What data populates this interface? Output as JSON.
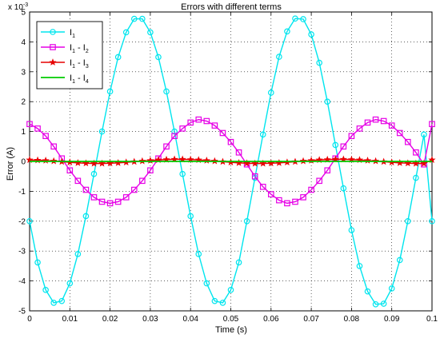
{
  "chart_data": {
    "type": "line",
    "title": "Errors with different terms",
    "xlabel": "Time (s)",
    "ylabel": "Error (A)",
    "y_multiplier_label": "x 10",
    "y_multiplier_exp": "-3",
    "xlim": [
      0,
      0.1
    ],
    "ylim": [
      -5,
      5
    ],
    "xticks": [
      "0",
      "0.01",
      "0.02",
      "0.03",
      "0.04",
      "0.05",
      "0.06",
      "0.07",
      "0.08",
      "0.09",
      "0.1"
    ],
    "yticks": [
      "5",
      "4",
      "3",
      "2",
      "1",
      "0",
      "-1",
      "-2",
      "-3",
      "-4",
      "-5"
    ],
    "grid": true,
    "legend_position": "top-left",
    "x": [
      0,
      0.002,
      0.004,
      0.006,
      0.008,
      0.01,
      0.012,
      0.014,
      0.016,
      0.018,
      0.02,
      0.022,
      0.024,
      0.026,
      0.028,
      0.03,
      0.032,
      0.034,
      0.036,
      0.038,
      0.04,
      0.042,
      0.044,
      0.046,
      0.048,
      0.05,
      0.052,
      0.054,
      0.056,
      0.058,
      0.06,
      0.062,
      0.064,
      0.066,
      0.068,
      0.07,
      0.072,
      0.074,
      0.076,
      0.078,
      0.08,
      0.082,
      0.084,
      0.086,
      0.088,
      0.09,
      0.092,
      0.094,
      0.096,
      0.098,
      0.1
    ],
    "series": [
      {
        "name": "I",
        "sub": "1",
        "color": "#00e5ee",
        "marker": "circle",
        "values": [
          -2.0,
          -3.38,
          -4.3,
          -4.73,
          -4.67,
          -4.08,
          -3.1,
          -1.83,
          -0.42,
          1.0,
          2.34,
          3.49,
          4.32,
          4.77,
          4.77,
          4.32,
          3.49,
          2.34,
          1.0,
          -0.42,
          -1.83,
          -3.1,
          -4.08,
          -4.67,
          -4.73,
          -4.3,
          -3.38,
          -2.0,
          -0.55,
          0.9,
          2.3,
          3.5,
          4.35,
          4.78,
          4.76,
          4.25,
          3.3,
          2.0,
          0.55,
          -0.9,
          -2.3,
          -3.5,
          -4.35,
          -4.78,
          -4.76,
          -4.25,
          -3.3,
          -2.0,
          -0.55,
          0.9,
          -2.0
        ]
      },
      {
        "name": "I",
        "sub": "1",
        "op": " - I",
        "sub2": "2",
        "color": "#e600e6",
        "marker": "square",
        "values": [
          1.25,
          1.1,
          0.85,
          0.5,
          0.1,
          -0.3,
          -0.65,
          -0.95,
          -1.2,
          -1.35,
          -1.4,
          -1.35,
          -1.2,
          -0.95,
          -0.65,
          -0.3,
          0.1,
          0.5,
          0.85,
          1.1,
          1.3,
          1.4,
          1.35,
          1.2,
          0.95,
          0.65,
          0.3,
          -0.1,
          -0.5,
          -0.85,
          -1.1,
          -1.3,
          -1.4,
          -1.35,
          -1.2,
          -0.95,
          -0.65,
          -0.3,
          0.1,
          0.5,
          0.85,
          1.1,
          1.3,
          1.4,
          1.35,
          1.2,
          0.95,
          0.65,
          0.3,
          -0.1,
          1.25
        ]
      },
      {
        "name": "I",
        "sub": "1",
        "op": " - I",
        "sub2": "3",
        "color": "#e60000",
        "marker": "star",
        "values": [
          0.05,
          0.04,
          0.03,
          0.01,
          -0.01,
          -0.03,
          -0.05,
          -0.06,
          -0.07,
          -0.07,
          -0.06,
          -0.05,
          -0.03,
          -0.01,
          0.01,
          0.03,
          0.05,
          0.06,
          0.07,
          0.07,
          0.06,
          0.05,
          0.03,
          0.01,
          -0.01,
          -0.03,
          -0.05,
          -0.06,
          -0.07,
          -0.07,
          -0.06,
          -0.05,
          -0.03,
          -0.01,
          0.01,
          0.03,
          0.05,
          0.06,
          0.07,
          0.07,
          0.06,
          0.05,
          0.03,
          0.01,
          -0.01,
          -0.03,
          -0.05,
          -0.06,
          -0.07,
          -0.07,
          0.05
        ]
      },
      {
        "name": "I",
        "sub": "1",
        "op": " - I",
        "sub2": "4",
        "color": "#00cc00",
        "marker": "none",
        "values": [
          0,
          0,
          0,
          0,
          0,
          0,
          0,
          0,
          0,
          0,
          0,
          0,
          0,
          0,
          0,
          0,
          0,
          0,
          0,
          0,
          0,
          0,
          0,
          0,
          0,
          0,
          0,
          0,
          0,
          0,
          0,
          0,
          0,
          0,
          0,
          0,
          0,
          0,
          0,
          0,
          0,
          0,
          0,
          0,
          0,
          0,
          0,
          0,
          0,
          0,
          0
        ]
      }
    ]
  }
}
